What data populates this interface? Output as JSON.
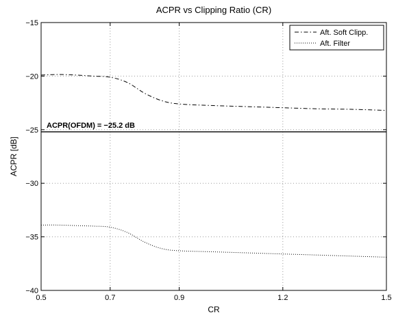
{
  "chart_data": {
    "type": "line",
    "title": "ACPR vs Clipping Ratio (CR)",
    "xlabel": "CR",
    "ylabel": "ACPR [dB]",
    "xlim": [
      0.5,
      1.5
    ],
    "ylim": [
      -40,
      -15
    ],
    "xticks": [
      0.5,
      0.7,
      0.9,
      1.2,
      1.5
    ],
    "xtick_labels": [
      "0.5",
      "0.7",
      "0.9",
      "1.2",
      "1.5"
    ],
    "yticks": [
      -40,
      -35,
      -30,
      -25,
      -20,
      -15
    ],
    "ytick_labels": [
      "−40",
      "−35",
      "−30",
      "−25",
      "−20",
      "−15"
    ],
    "grid": true,
    "legend_position": "top-right",
    "series": [
      {
        "name": "Aft. Soft Clipp.",
        "style": "dashdot",
        "color": "#000000",
        "x": [
          0.5,
          0.55,
          0.6,
          0.65,
          0.7,
          0.75,
          0.8,
          0.85,
          0.9,
          1.0,
          1.1,
          1.2,
          1.3,
          1.4,
          1.5
        ],
        "y": [
          -19.9,
          -19.85,
          -19.9,
          -20.0,
          -20.1,
          -20.6,
          -21.6,
          -22.3,
          -22.6,
          -22.75,
          -22.85,
          -22.95,
          -23.05,
          -23.1,
          -23.2
        ]
      },
      {
        "name": "Aft. Filter",
        "style": "dotted",
        "color": "#000000",
        "x": [
          0.5,
          0.55,
          0.6,
          0.65,
          0.7,
          0.75,
          0.8,
          0.85,
          0.9,
          1.0,
          1.1,
          1.2,
          1.3,
          1.4,
          1.5
        ],
        "y": [
          -33.9,
          -33.9,
          -33.95,
          -34.0,
          -34.1,
          -34.6,
          -35.5,
          -36.1,
          -36.3,
          -36.4,
          -36.5,
          -36.6,
          -36.7,
          -36.8,
          -36.9
        ]
      }
    ],
    "reference_line": {
      "y": -25.2,
      "label": "ACPR(OFDM) = −25.2 dB"
    }
  }
}
